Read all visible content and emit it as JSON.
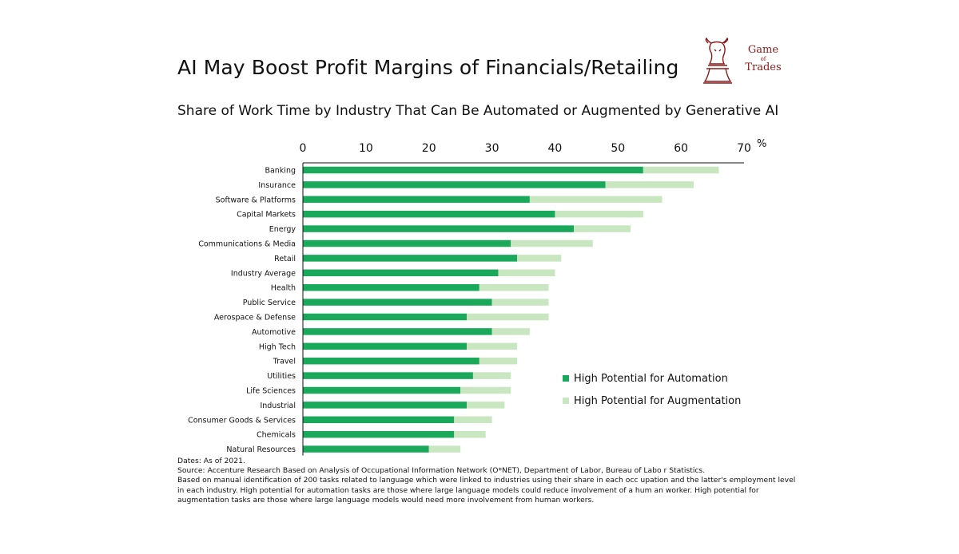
{
  "title": "AI May Boost Profit Margins of Financials/Retailing",
  "subtitle": "Share of Work Time by Industry That Can Be Automated or Augmented by Generative AI",
  "logo": {
    "line1": "Game",
    "line2": "of",
    "line3": "Trades",
    "color": "#8b1a1a"
  },
  "colors": {
    "automation": "#1aa85a",
    "augmentation": "#c8e6c0",
    "axis": "#111111"
  },
  "chart_data": {
    "type": "bar",
    "orientation": "horizontal",
    "stacked": true,
    "unit_label": "%",
    "xlim": [
      0,
      70
    ],
    "xticks": [
      0,
      10,
      20,
      30,
      40,
      50,
      60,
      70
    ],
    "axis_position": "top",
    "grid": false,
    "legend_placement": "bottom-right",
    "categories": [
      "Banking",
      "Insurance",
      "Software & Platforms",
      "Capital Markets",
      "Energy",
      "Communications & Media",
      "Retail",
      "Industry Average",
      "Health",
      "Public Service",
      "Aerospace & Defense",
      "Automotive",
      "High Tech",
      "Travel",
      "Utilities",
      "Life Sciences",
      "Industrial",
      "Consumer Goods & Services",
      "Chemicals",
      "Natural Resources"
    ],
    "series": [
      {
        "name": "High Potential for Automation",
        "values": [
          54,
          48,
          36,
          40,
          43,
          33,
          34,
          31,
          28,
          30,
          26,
          30,
          26,
          28,
          27,
          25,
          26,
          24,
          24,
          20
        ]
      },
      {
        "name": "High Potential for Augmentation",
        "values": [
          12,
          14,
          21,
          14,
          9,
          13,
          7,
          9,
          11,
          9,
          13,
          6,
          8,
          6,
          6,
          8,
          6,
          6,
          5,
          5
        ]
      }
    ]
  },
  "notes": [
    "Dates: As of 2021.",
    "Source: Accenture Research Based on Analysis of Occupational Information Network (O*NET), Department of Labor, Bureau of Labo r Statistics.",
    "Based on manual identification of 200 tasks related to language which were linked to industries using their share in each occ upation and the latter's employment level",
    "in each industry. High potential for automation tasks are those where large language models could reduce involvement of a hum an worker. High potential for",
    "augmentation tasks are those where large language models would need more involvement from human workers."
  ]
}
